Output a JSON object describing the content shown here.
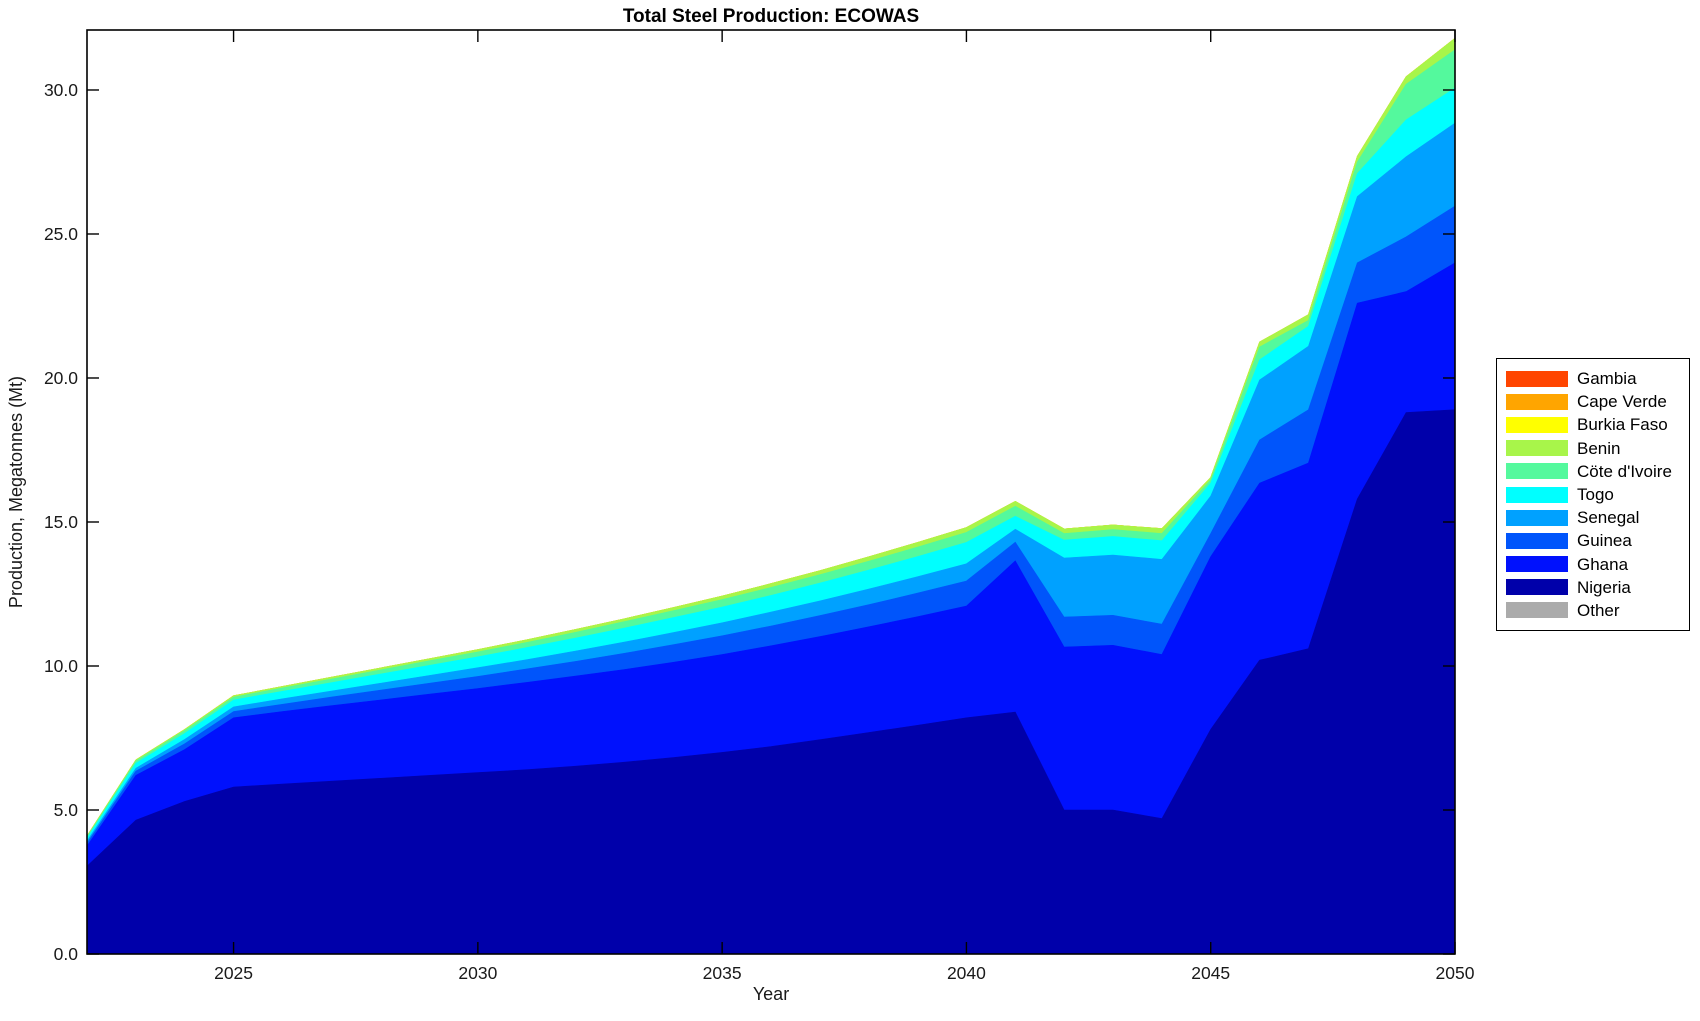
{
  "title": "Total Steel Production: ECOWAS",
  "chart_data": {
    "type": "area",
    "stacked": true,
    "title": "Total Steel Production: ECOWAS",
    "xlabel": "Year",
    "ylabel": "Production, Megatonnes (Mt)",
    "xlim": [
      2022,
      2050
    ],
    "ylim": [
      0,
      32.083
    ],
    "grid": false,
    "legend_position": "right-outside",
    "axis_color": "#000000",
    "tick_label_color": "#1a1a1a",
    "x": [
      2022,
      2023,
      2024,
      2025,
      2026,
      2027,
      2028,
      2029,
      2030,
      2031,
      2032,
      2033,
      2034,
      2035,
      2036,
      2037,
      2038,
      2039,
      2040,
      2041,
      2042,
      2043,
      2044,
      2045,
      2046,
      2047,
      2048,
      2049,
      2050
    ],
    "x_ticks": [
      2025,
      2030,
      2035,
      2040,
      2045,
      2050
    ],
    "x_tick_labels": [
      "2025",
      "2030",
      "2035",
      "2040",
      "2045",
      "2050"
    ],
    "y_ticks": [
      0,
      5,
      10,
      15,
      20,
      25,
      30
    ],
    "y_tick_labels": [
      "0.0",
      "5.0",
      "10.0",
      "15.0",
      "20.0",
      "25.0",
      "30.0"
    ],
    "stack_order_bottom_up": [
      "Other",
      "Nigeria",
      "Ghana",
      "Guinea",
      "Senegal",
      "Togo",
      "Cöte d'Ivoire",
      "Benin",
      "Burkia Faso",
      "Cape Verde",
      "Gambia"
    ],
    "series": [
      {
        "name": "Gambia",
        "color": "#FF4500",
        "values": [
          0,
          0,
          0,
          0,
          0,
          0,
          0,
          0,
          0,
          0,
          0,
          0,
          0,
          0,
          0,
          0,
          0,
          0,
          0,
          0,
          0,
          0,
          0,
          0,
          0,
          0,
          0,
          0,
          0
        ]
      },
      {
        "name": "Cape Verde",
        "color": "#FFA500",
        "values": [
          0,
          0,
          0,
          0,
          0,
          0,
          0,
          0,
          0,
          0,
          0,
          0,
          0,
          0,
          0,
          0,
          0,
          0,
          0,
          0,
          0,
          0,
          0,
          0,
          0,
          0,
          0,
          0,
          0
        ]
      },
      {
        "name": "Burkia Faso",
        "color": "#FFFF00",
        "values": [
          0,
          0,
          0,
          0,
          0,
          0,
          0,
          0,
          0,
          0,
          0,
          0,
          0,
          0,
          0,
          0,
          0,
          0,
          0,
          0,
          0,
          0,
          0,
          0,
          0,
          0,
          0,
          0,
          0
        ]
      },
      {
        "name": "Benin",
        "color": "#A8F54A",
        "values": [
          0.03,
          0.04,
          0.04,
          0.05,
          0.05,
          0.06,
          0.07,
          0.07,
          0.08,
          0.09,
          0.1,
          0.1,
          0.11,
          0.12,
          0.13,
          0.14,
          0.15,
          0.16,
          0.17,
          0.17,
          0.16,
          0.16,
          0.17,
          0.09,
          0.17,
          0.2,
          0.2,
          0.26,
          0.4
        ]
      },
      {
        "name": "Cöte d'Ivoire",
        "color": "#54F99D",
        "values": [
          0.05,
          0.08,
          0.1,
          0.1,
          0.12,
          0.13,
          0.14,
          0.16,
          0.17,
          0.18,
          0.2,
          0.22,
          0.24,
          0.26,
          0.28,
          0.29,
          0.31,
          0.33,
          0.35,
          0.35,
          0.23,
          0.24,
          0.25,
          0.11,
          0.45,
          0.2,
          0.4,
          1.24,
          1.33
        ]
      },
      {
        "name": "Togo",
        "color": "#00FFFF",
        "values": [
          0.1,
          0.17,
          0.21,
          0.24,
          0.26,
          0.29,
          0.32,
          0.35,
          0.38,
          0.42,
          0.45,
          0.49,
          0.52,
          0.55,
          0.58,
          0.62,
          0.66,
          0.7,
          0.74,
          0.45,
          0.62,
          0.65,
          0.65,
          0.45,
          0.7,
          0.7,
          0.8,
          1.28,
          1.22
        ]
      },
      {
        "name": "Senegal",
        "color": "#00A1FF",
        "values": [
          0.07,
          0.1,
          0.15,
          0.16,
          0.19,
          0.21,
          0.24,
          0.27,
          0.3,
          0.32,
          0.36,
          0.39,
          0.42,
          0.45,
          0.48,
          0.51,
          0.54,
          0.57,
          0.6,
          0.45,
          2.05,
          2.09,
          2.25,
          1.3,
          2.08,
          2.2,
          2.3,
          2.78,
          2.88
        ]
      },
      {
        "name": "Guinea",
        "color": "#0055FB",
        "values": [
          0.1,
          0.15,
          0.2,
          0.22,
          0.25,
          0.3,
          0.34,
          0.38,
          0.42,
          0.47,
          0.51,
          0.56,
          0.61,
          0.65,
          0.69,
          0.73,
          0.77,
          0.82,
          0.87,
          0.65,
          1.04,
          1.04,
          1.05,
          0.8,
          1.5,
          1.85,
          1.4,
          1.9,
          1.97
        ]
      },
      {
        "name": "Ghana",
        "color": "#0011FD",
        "values": [
          0.7,
          1.55,
          1.8,
          2.4,
          2.52,
          2.62,
          2.72,
          2.82,
          2.92,
          3.03,
          3.13,
          3.22,
          3.31,
          3.4,
          3.5,
          3.58,
          3.67,
          3.77,
          3.88,
          5.25,
          5.66,
          5.72,
          5.7,
          6.0,
          6.15,
          6.45,
          6.8,
          4.2,
          5.1
        ]
      },
      {
        "name": "Nigeria",
        "color": "#0000AA",
        "values": [
          3.05,
          4.65,
          5.3,
          5.8,
          5.9,
          6.0,
          6.1,
          6.2,
          6.3,
          6.4,
          6.52,
          6.66,
          6.82,
          7.0,
          7.2,
          7.44,
          7.69,
          7.94,
          8.2,
          8.4,
          5.0,
          5.0,
          4.7,
          7.8,
          10.2,
          10.6,
          15.8,
          18.8,
          18.9
        ]
      },
      {
        "name": "Other",
        "color": "#ABABAB",
        "values": [
          0,
          0,
          0,
          0,
          0,
          0,
          0,
          0,
          0,
          0,
          0,
          0,
          0,
          0,
          0,
          0,
          0,
          0,
          0,
          0,
          0,
          0,
          0,
          0,
          0,
          0,
          0,
          0,
          0
        ]
      }
    ]
  }
}
